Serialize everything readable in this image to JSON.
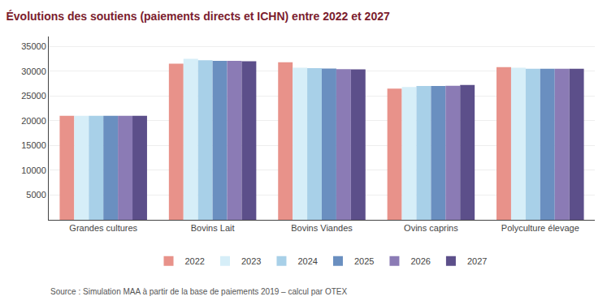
{
  "chart_data": {
    "type": "bar",
    "title": "Évolutions des soutiens (paiements directs et ICHN) entre 2022 et 2027",
    "subtitle": "Source : Simulation MAA à partir de la base de paiements 2019 – calcul par OTEX",
    "categories": [
      "Grandes cultures",
      "Bovins Lait",
      "Bovins Viandes",
      "Ovins caprins",
      "Polyculture élevage"
    ],
    "series": [
      {
        "name": "2022",
        "color": "#E8928A",
        "values": [
          21000,
          31500,
          31800,
          26500,
          30800
        ]
      },
      {
        "name": "2023",
        "color": "#D6EEF8",
        "values": [
          21000,
          32500,
          30700,
          26800,
          30700
        ]
      },
      {
        "name": "2024",
        "color": "#A8D0E8",
        "values": [
          21000,
          32200,
          30600,
          27000,
          30500
        ]
      },
      {
        "name": "2025",
        "color": "#6A8FC0",
        "values": [
          21000,
          32100,
          30550,
          27000,
          30500
        ]
      },
      {
        "name": "2026",
        "color": "#8B7BB5",
        "values": [
          21000,
          32100,
          30400,
          27050,
          30500
        ]
      },
      {
        "name": "2027",
        "color": "#5C4F8A",
        "values": [
          21000,
          32000,
          30350,
          27200,
          30500
        ]
      }
    ],
    "ylim": [
      0,
      37000
    ],
    "yticks": [
      5000,
      10000,
      15000,
      20000,
      25000,
      30000,
      35000
    ],
    "grid": true,
    "legend": "bottom"
  }
}
